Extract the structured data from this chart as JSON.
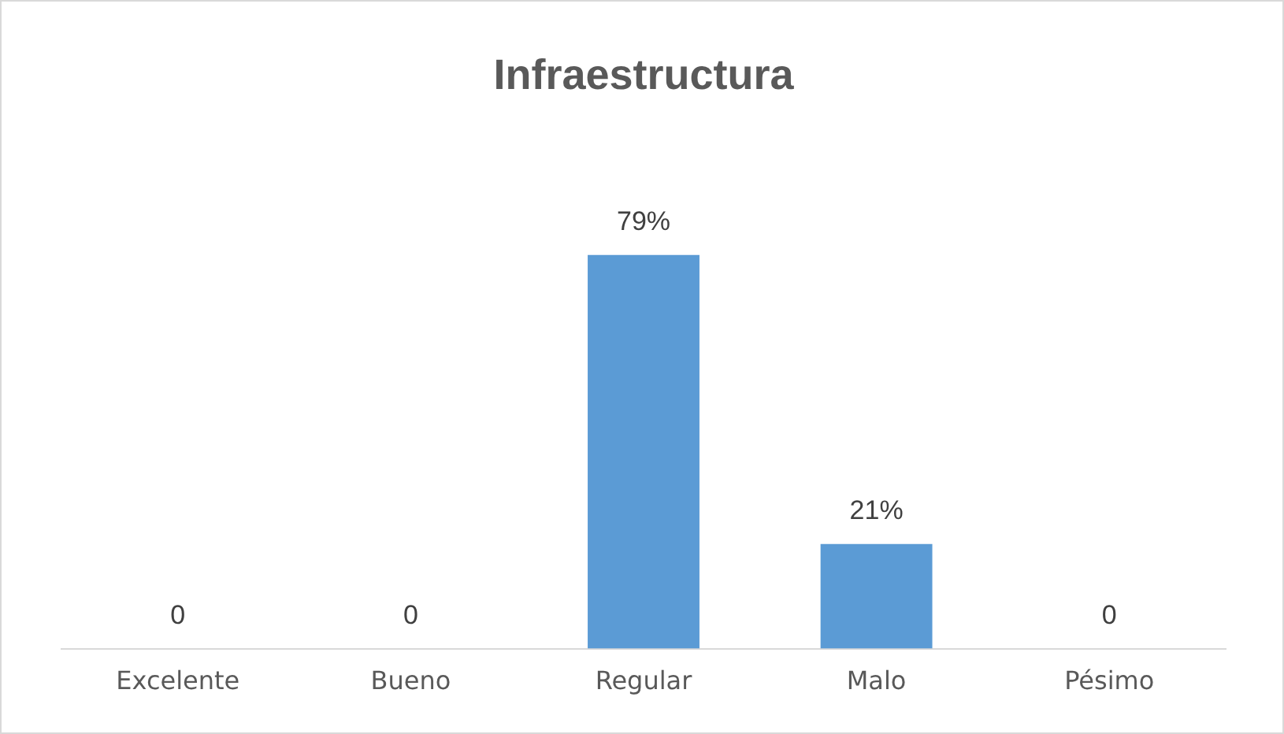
{
  "chart_data": {
    "type": "bar",
    "title": "Infraestructura",
    "categories": [
      "Excelente",
      "Bueno",
      "Regular",
      "Malo",
      "Pésimo"
    ],
    "values": [
      0,
      0,
      79,
      21,
      0
    ],
    "value_labels": [
      "0",
      "0",
      "79%",
      "21%",
      "0"
    ],
    "color": "#5b9bd5",
    "legend": false
  }
}
